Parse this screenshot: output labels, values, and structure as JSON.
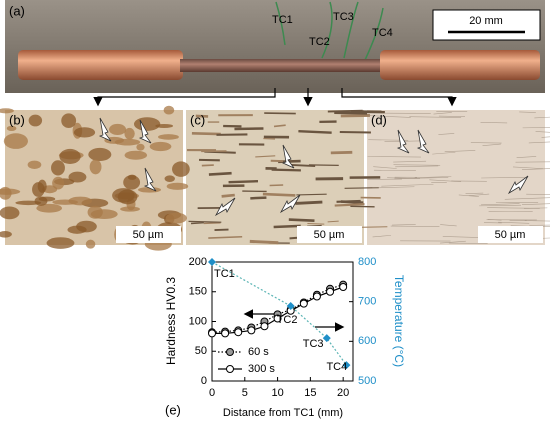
{
  "panels": {
    "a": {
      "label": "(a)",
      "thermocouples": [
        "TC1",
        "TC2",
        "TC3",
        "TC4"
      ],
      "scale_bar": "20 mm"
    },
    "b": {
      "label": "(b)",
      "scale_bar": "50 µm"
    },
    "c": {
      "label": "(c)",
      "scale_bar": "50 µm"
    },
    "d": {
      "label": "(d)",
      "scale_bar": "50 µm"
    }
  },
  "chart_data": {
    "type": "line",
    "label": "(e)",
    "x_label": "Distance from TC1 (mm)",
    "y_label": "Hardness HV0.3",
    "y2_label": "Temperature (°C)",
    "xlim": [
      0,
      21.5
    ],
    "xticks": [
      0,
      5,
      10,
      15,
      20
    ],
    "ylim": [
      0,
      200
    ],
    "yticks": [
      0,
      50,
      100,
      150,
      200
    ],
    "y2lim": [
      500,
      800
    ],
    "y2ticks": [
      500,
      600,
      700,
      800
    ],
    "series": [
      {
        "name": "60 s",
        "color": "#999999",
        "x": [
          0,
          2,
          4,
          6,
          8,
          10,
          12,
          14,
          16,
          18,
          20
        ],
        "values": [
          82,
          83,
          85,
          90,
          100,
          112,
          120,
          132,
          145,
          155,
          162
        ]
      },
      {
        "name": "300 s",
        "color": "#ffffff",
        "x": [
          0,
          2,
          4,
          6,
          8,
          10,
          12,
          14,
          16,
          18,
          20
        ],
        "values": [
          80,
          80,
          82,
          85,
          92,
          105,
          118,
          130,
          142,
          150,
          158
        ]
      },
      {
        "color": "#1f8fc8",
        "axis": "y2",
        "x": [
          0,
          12,
          17.5,
          20.5
        ],
        "values": [
          800,
          689,
          608,
          540
        ],
        "labels": [
          "TC1",
          "TC2",
          "TC3",
          "TC4"
        ]
      }
    ]
  }
}
